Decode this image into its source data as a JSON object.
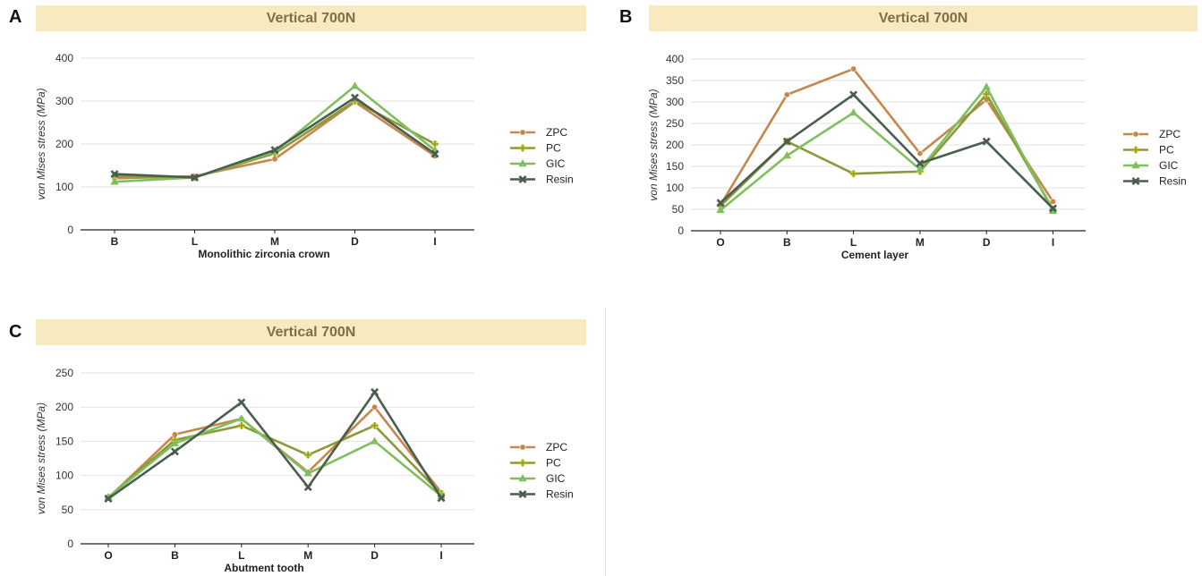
{
  "colors": {
    "ZPC": "#c8874a",
    "PC": "#8a9a3a",
    "GIC": "#7fbf5e",
    "Resin": "#4a5e4e",
    "PC_marker": "#e3d92a"
  },
  "panels": [
    {
      "letter": "A",
      "title": "Vertical 700N"
    },
    {
      "letter": "B",
      "title": "Vertical 700N"
    },
    {
      "letter": "C",
      "title": "Vertical 700N"
    }
  ],
  "chart_data": [
    {
      "type": "line",
      "title": "Vertical 700N",
      "xlabel": "Monolithic zirconia crown",
      "ylabel": "von Mises stress (MPa)",
      "categories": [
        "B",
        "L",
        "M",
        "D",
        "I"
      ],
      "ylim": [
        0,
        400
      ],
      "yticks": [
        0,
        100,
        200,
        300,
        400
      ],
      "grid": true,
      "legend": "right",
      "series": [
        {
          "name": "ZPC",
          "marker": "circle",
          "values": [
            120,
            125,
            165,
            298,
            172
          ]
        },
        {
          "name": "PC",
          "marker": "plus",
          "values": [
            125,
            122,
            178,
            300,
            200
          ]
        },
        {
          "name": "GIC",
          "marker": "triangle",
          "values": [
            112,
            122,
            182,
            335,
            185
          ]
        },
        {
          "name": "Resin",
          "marker": "x",
          "values": [
            130,
            122,
            186,
            308,
            177
          ]
        }
      ]
    },
    {
      "type": "line",
      "title": "Vertical 700N",
      "xlabel": "Cement layer",
      "ylabel": "von Mises stress (MPa)",
      "categories": [
        "O",
        "B",
        "L",
        "M",
        "D",
        "I"
      ],
      "ylim": [
        0,
        400
      ],
      "yticks": [
        0,
        50,
        100,
        150,
        200,
        250,
        300,
        350,
        400
      ],
      "grid": true,
      "legend": "right",
      "series": [
        {
          "name": "ZPC",
          "marker": "circle",
          "values": [
            60,
            317,
            377,
            180,
            305,
            68
          ]
        },
        {
          "name": "PC",
          "marker": "plus",
          "values": [
            58,
            208,
            133,
            138,
            318,
            50
          ]
        },
        {
          "name": "GIC",
          "marker": "triangle",
          "values": [
            48,
            175,
            275,
            143,
            335,
            46
          ]
        },
        {
          "name": "Resin",
          "marker": "x",
          "values": [
            65,
            208,
            317,
            157,
            208,
            52
          ]
        }
      ]
    },
    {
      "type": "line",
      "title": "Vertical 700N",
      "xlabel": "Abutment tooth",
      "ylabel": "von Mises stress (MPa)",
      "categories": [
        "O",
        "B",
        "L",
        "M",
        "D",
        "I"
      ],
      "ylim": [
        0,
        250
      ],
      "yticks": [
        0,
        50,
        100,
        150,
        200,
        250
      ],
      "grid": true,
      "legend": "right",
      "series": [
        {
          "name": "ZPC",
          "marker": "circle",
          "values": [
            67,
            160,
            183,
            105,
            200,
            75
          ]
        },
        {
          "name": "PC",
          "marker": "plus",
          "values": [
            68,
            152,
            173,
            130,
            173,
            73
          ]
        },
        {
          "name": "GIC",
          "marker": "triangle",
          "values": [
            68,
            147,
            183,
            103,
            150,
            70
          ]
        },
        {
          "name": "Resin",
          "marker": "x",
          "values": [
            66,
            135,
            207,
            83,
            222,
            67
          ]
        }
      ]
    }
  ]
}
